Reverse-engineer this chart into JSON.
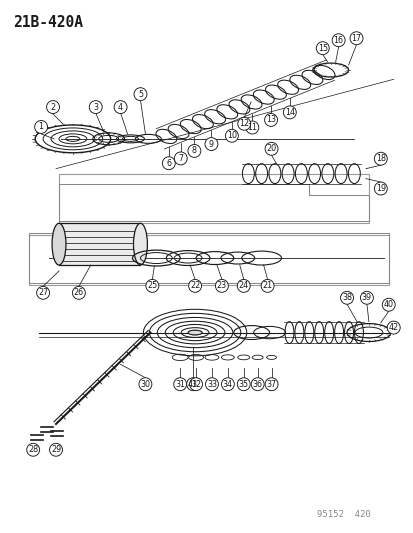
{
  "title": "21B-420A",
  "footer": "95152  420",
  "bg": "#ffffff",
  "lc": "#1a1a1a",
  "fig_w": 4.14,
  "fig_h": 5.33,
  "dpi": 100,
  "label_fs": 5.8,
  "label_r": 6.5
}
